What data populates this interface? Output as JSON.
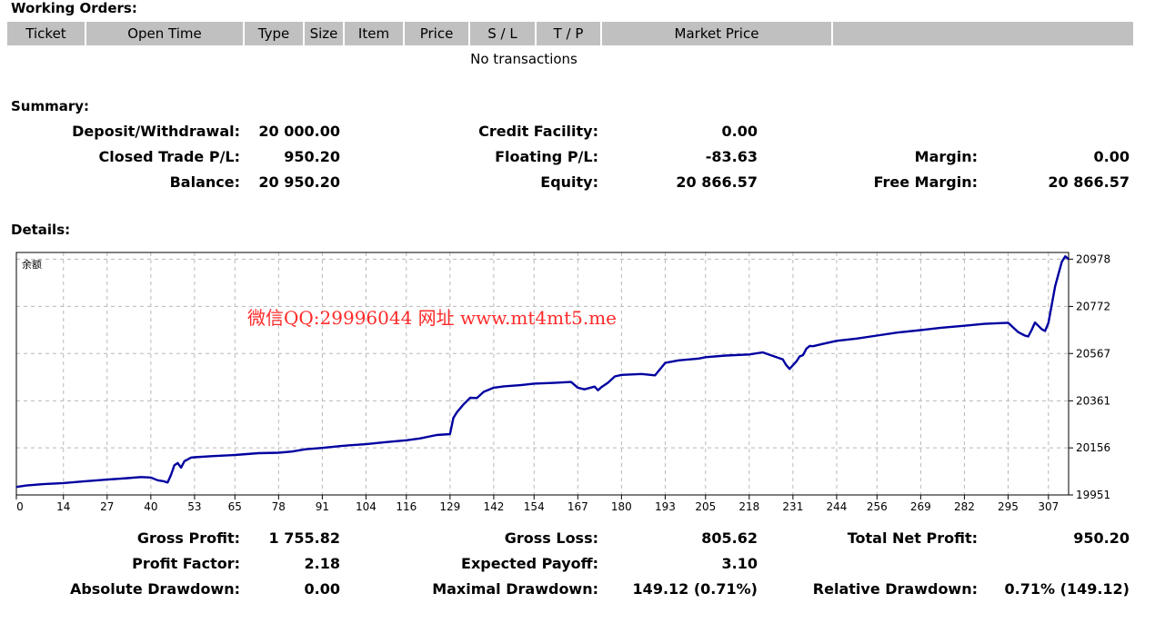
{
  "working_orders": {
    "title": "Working Orders:",
    "columns": [
      "Ticket",
      "Open Time",
      "Type",
      "Size",
      "Item",
      "Price",
      "S / L",
      "T / P",
      "Market Price",
      ""
    ],
    "empty_text": "No transactions"
  },
  "summary": {
    "title": "Summary:",
    "rows": [
      {
        "l1": "Deposit/Withdrawal:",
        "v1": "20 000.00",
        "l2": "Credit Facility:",
        "v2": "0.00",
        "l3": "",
        "v3": ""
      },
      {
        "l1": "Closed Trade P/L:",
        "v1": "950.20",
        "l2": "Floating P/L:",
        "v2": "-83.63",
        "l3": "Margin:",
        "v3": "0.00"
      },
      {
        "l1": "Balance:",
        "v1": "20 950.20",
        "l2": "Equity:",
        "v2": "20 866.57",
        "l3": "Free Margin:",
        "v3": "20 866.57"
      }
    ]
  },
  "details": {
    "title": "Details:",
    "watermark": "微信QQ:29996044 网址 www.mt4mt5.me"
  },
  "chart_data": {
    "type": "line",
    "title": "余额",
    "x_ticks": [
      0,
      14,
      27,
      40,
      53,
      65,
      78,
      91,
      104,
      116,
      129,
      142,
      154,
      167,
      180,
      193,
      205,
      218,
      231,
      244,
      256,
      269,
      282,
      295,
      307
    ],
    "y_ticks": [
      19951,
      20156,
      20361,
      20567,
      20772,
      20978
    ],
    "xlim": [
      0,
      313
    ],
    "ylim": [
      19951,
      21007
    ],
    "series": [
      {
        "name": "",
        "color": "#0000a0",
        "x": [
          0,
          3,
          8,
          14,
          20,
          27,
          33,
          37,
          40,
          42,
          44,
          45,
          46,
          47,
          48,
          49,
          50,
          52,
          53,
          58,
          65,
          72,
          78,
          82,
          86,
          91,
          97,
          104,
          110,
          116,
          120,
          125,
          129,
          130,
          131,
          133,
          135,
          137,
          139,
          142,
          145,
          150,
          154,
          160,
          165,
          167,
          169,
          172,
          173,
          174,
          176,
          178,
          180,
          186,
          190,
          193,
          197,
          203,
          205,
          211,
          218,
          222,
          228,
          229,
          230,
          232,
          233,
          234,
          235,
          236,
          237,
          240,
          244,
          250,
          256,
          262,
          269,
          275,
          282,
          288,
          295,
          298,
          300,
          301,
          302,
          303,
          304,
          305,
          306,
          307,
          309,
          310,
          311,
          312,
          313
        ],
        "y": [
          19986,
          19992,
          19998,
          20003,
          20010,
          20018,
          20024,
          20029,
          20027,
          20015,
          20010,
          20005,
          20038,
          20080,
          20090,
          20070,
          20098,
          20114,
          20115,
          20120,
          20125,
          20133,
          20135,
          20140,
          20150,
          20156,
          20165,
          20172,
          20181,
          20189,
          20197,
          20212,
          20216,
          20286,
          20310,
          20345,
          20374,
          20373,
          20400,
          20418,
          20424,
          20429,
          20436,
          20439,
          20443,
          20418,
          20411,
          20423,
          20407,
          20420,
          20440,
          20467,
          20474,
          20478,
          20472,
          20526,
          20537,
          20545,
          20551,
          20558,
          20563,
          20572,
          20541,
          20516,
          20500,
          20532,
          20554,
          20560,
          20588,
          20600,
          20599,
          20609,
          20622,
          20632,
          20645,
          20658,
          20669,
          20679,
          20688,
          20696,
          20701,
          20660,
          20645,
          20641,
          20669,
          20702,
          20688,
          20673,
          20665,
          20700,
          20860,
          20914,
          20967,
          20990,
          20978
        ]
      }
    ]
  },
  "totals": {
    "rows": [
      {
        "l1": "Gross Profit:",
        "v1": "1 755.82",
        "l2": "Gross Loss:",
        "v2": "805.62",
        "l3": "Total Net Profit:",
        "v3": "950.20"
      },
      {
        "l1": "Profit Factor:",
        "v1": "2.18",
        "l2": "Expected Payoff:",
        "v2": "3.10",
        "l3": "",
        "v3": ""
      },
      {
        "l1": "Absolute Drawdown:",
        "v1": "0.00",
        "l2": "Maximal Drawdown:",
        "v2": "149.12 (0.71%)",
        "l3": "Relative Drawdown:",
        "v3": "0.71% (149.12)"
      }
    ]
  }
}
